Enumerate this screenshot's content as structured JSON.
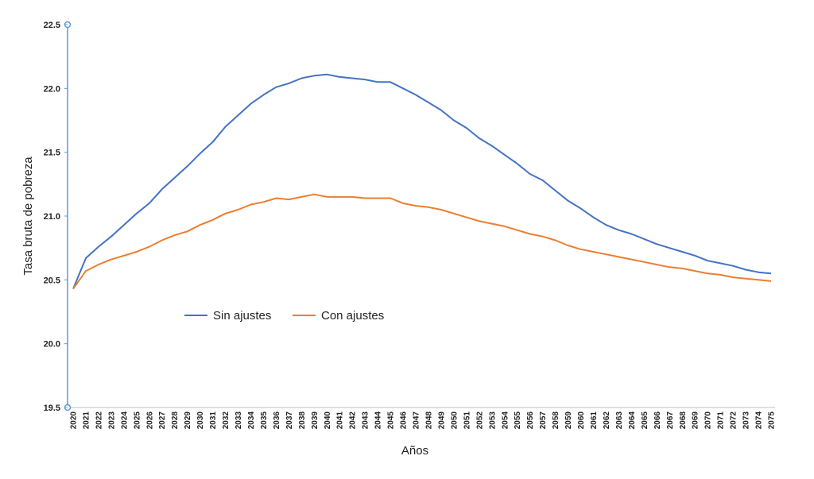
{
  "chart_data": {
    "type": "line",
    "title": "",
    "xlabel": "Años",
    "ylabel": "Tasa bruta de pobreza",
    "ylim": [
      19.5,
      22.5
    ],
    "y_ticks": [
      "19.5",
      "20.0",
      "20.5",
      "21.0",
      "21.5",
      "22.0",
      "22.5"
    ],
    "grid": false,
    "legend_position": "center-left",
    "x": [
      2020,
      2021,
      2022,
      2023,
      2024,
      2025,
      2026,
      2027,
      2028,
      2029,
      2030,
      2031,
      2032,
      2033,
      2034,
      2035,
      2036,
      2037,
      2038,
      2039,
      2040,
      2041,
      2042,
      2043,
      2044,
      2045,
      2046,
      2047,
      2048,
      2049,
      2050,
      2051,
      2052,
      2053,
      2054,
      2055,
      2056,
      2057,
      2058,
      2059,
      2060,
      2061,
      2062,
      2063,
      2064,
      2065,
      2066,
      2067,
      2068,
      2069,
      2070,
      2071,
      2072,
      2073,
      2074,
      2075
    ],
    "series": [
      {
        "name": "Sin ajustes",
        "color": "#4472c4",
        "values": [
          20.43,
          20.67,
          20.76,
          20.84,
          20.93,
          21.02,
          21.1,
          21.21,
          21.3,
          21.39,
          21.49,
          21.58,
          21.7,
          21.79,
          21.88,
          21.95,
          22.01,
          22.04,
          22.08,
          22.1,
          22.11,
          22.09,
          22.08,
          22.07,
          22.05,
          22.05,
          22.0,
          21.95,
          21.89,
          21.83,
          21.75,
          21.69,
          21.61,
          21.55,
          21.48,
          21.41,
          21.33,
          21.28,
          21.2,
          21.12,
          21.06,
          20.99,
          20.93,
          20.89,
          20.86,
          20.82,
          20.78,
          20.75,
          20.72,
          20.69,
          20.65,
          20.63,
          20.61,
          20.58,
          20.56,
          20.55
        ]
      },
      {
        "name": "Con ajustes",
        "color": "#ed7d31",
        "values": [
          20.43,
          20.57,
          20.62,
          20.66,
          20.69,
          20.72,
          20.76,
          20.81,
          20.85,
          20.88,
          20.93,
          20.97,
          21.02,
          21.05,
          21.09,
          21.11,
          21.14,
          21.13,
          21.15,
          21.17,
          21.15,
          21.15,
          21.15,
          21.14,
          21.14,
          21.14,
          21.1,
          21.08,
          21.07,
          21.05,
          21.02,
          20.99,
          20.96,
          20.94,
          20.92,
          20.89,
          20.86,
          20.84,
          20.81,
          20.77,
          20.74,
          20.72,
          20.7,
          20.68,
          20.66,
          20.64,
          20.62,
          20.6,
          20.59,
          20.57,
          20.55,
          20.54,
          20.52,
          20.51,
          20.5,
          20.49
        ]
      }
    ]
  }
}
